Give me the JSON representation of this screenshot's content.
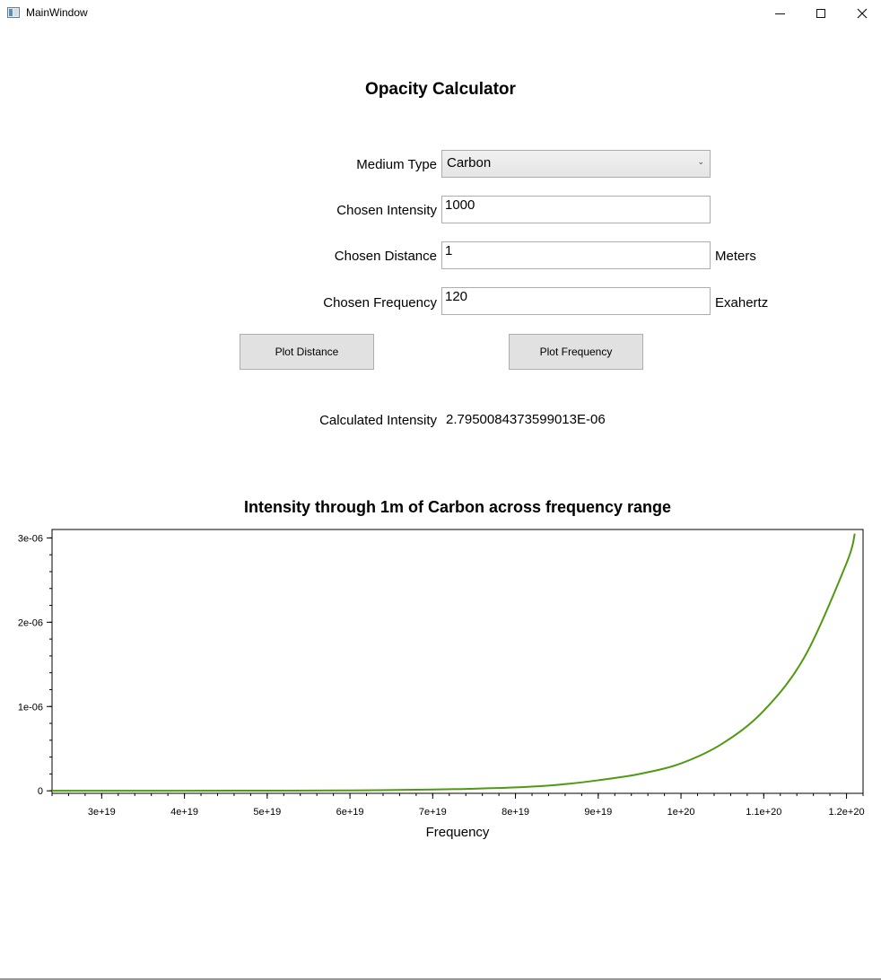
{
  "window": {
    "title": "MainWindow",
    "icon": "app-window-icon",
    "controls": [
      "minimize-icon",
      "maximize-icon",
      "close-icon"
    ]
  },
  "app": {
    "title": "Opacity Calculator"
  },
  "form": {
    "medium_label": "Medium Type",
    "medium_value": "Carbon",
    "intensity_label": "Chosen Intensity",
    "intensity_value": "1000",
    "distance_label": "Chosen Distance",
    "distance_value": "1",
    "distance_unit": "Meters",
    "frequency_label": "Chosen Frequency",
    "frequency_value": "120",
    "frequency_unit": "Exahertz"
  },
  "buttons": {
    "plot_distance": "Plot Distance",
    "plot_frequency": "Plot Frequency"
  },
  "result": {
    "label": "Calculated Intensity",
    "value": "2.7950084373599013E-06"
  },
  "colors": {
    "line": "#4e9a12"
  },
  "chart_data": {
    "type": "line",
    "title": "Intensity through 1m of Carbon across frequency range",
    "xlabel": "Frequency",
    "ylabel": "",
    "xlim": [
      2.4e+19,
      1.22e+20
    ],
    "ylim": [
      -3e-08,
      3.1e-06
    ],
    "x_ticks": [
      3e+19,
      4e+19,
      5e+19,
      6e+19,
      7e+19,
      8e+19,
      9e+19,
      1e+20,
      1.1e+20,
      1.2e+20
    ],
    "x_tick_labels": [
      "3e+19",
      "4e+19",
      "5e+19",
      "6e+19",
      "7e+19",
      "8e+19",
      "9e+19",
      "1e+20",
      "1.1e+20",
      "1.2e+20"
    ],
    "y_ticks": [
      0,
      1e-06,
      2e-06,
      3e-06
    ],
    "y_tick_labels": [
      "0",
      "1e-06",
      "2e-06",
      "3e-06"
    ],
    "grid": false,
    "series": [
      {
        "x": [
          2.4e+19,
          3e+19,
          4e+19,
          5e+19,
          6e+19,
          7e+19,
          7.5e+19,
          8e+19,
          8.5e+19,
          9e+19,
          9.5e+19,
          1e+20,
          1.05e+20,
          1.1e+20,
          1.15e+20,
          1.2e+20,
          1.21e+20
        ],
        "values": [
          0,
          0,
          5e-10,
          2e-09,
          5e-09,
          1.5e-08,
          2.5e-08,
          4e-08,
          7e-08,
          1.25e-07,
          2e-07,
          3.25e-07,
          5.6e-07,
          9.5e-07,
          1.6e-06,
          2.7e-06,
          3.05e-06
        ]
      }
    ]
  }
}
